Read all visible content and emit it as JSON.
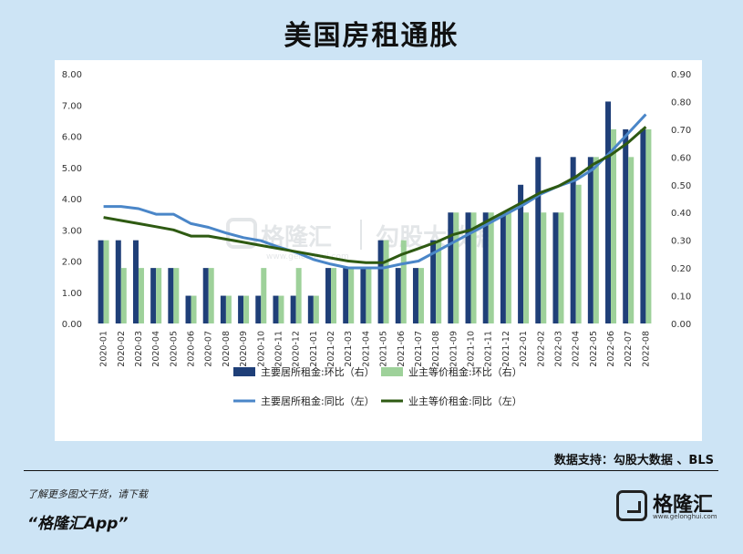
{
  "title": "美国房租通胀",
  "source_note": "数据支持：勾股大数据 、BLS",
  "footer": {
    "tagline": "了解更多图文干货，请下载",
    "app": "“格隆汇App”"
  },
  "logo": {
    "name": "格隆汇",
    "url": "www.gelonghui.com",
    "icon": "gelonghui-logo-icon"
  },
  "watermark": {
    "text_a": "格隆汇",
    "text_b": "勾股大数据",
    "url": "www.gelonghui.com"
  },
  "chart_data": {
    "type": "bar",
    "categories": [
      "2020-01",
      "2020-02",
      "2020-03",
      "2020-04",
      "2020-05",
      "2020-06",
      "2020-07",
      "2020-08",
      "2020-09",
      "2020-10",
      "2020-11",
      "2020-12",
      "2021-01",
      "2021-02",
      "2021-03",
      "2021-04",
      "2021-05",
      "2021-06",
      "2021-07",
      "2021-08",
      "2021-09",
      "2021-10",
      "2021-11",
      "2021-12",
      "2022-01",
      "2022-02",
      "2022-03",
      "2022-04",
      "2022-05",
      "2022-06",
      "2022-07",
      "2022-08"
    ],
    "left_axis": {
      "ylim": [
        0,
        8
      ],
      "ticks": [
        "0.00",
        "1.00",
        "2.00",
        "3.00",
        "4.00",
        "5.00",
        "6.00",
        "7.00",
        "8.00"
      ]
    },
    "right_axis": {
      "ylim": [
        0,
        0.9
      ],
      "ticks": [
        "0.00",
        "0.10",
        "0.20",
        "0.30",
        "0.40",
        "0.50",
        "0.60",
        "0.70",
        "0.80",
        "0.90"
      ]
    },
    "series": [
      {
        "name": "主要居所租金:环比（右）",
        "kind": "bar",
        "axis": "right",
        "color": "#1f3f78",
        "values": [
          0.3,
          0.3,
          0.3,
          0.2,
          0.2,
          0.1,
          0.2,
          0.1,
          0.1,
          0.1,
          0.1,
          0.1,
          0.1,
          0.2,
          0.2,
          0.2,
          0.3,
          0.2,
          0.2,
          0.3,
          0.4,
          0.4,
          0.4,
          0.4,
          0.5,
          0.6,
          0.4,
          0.6,
          0.6,
          0.8,
          0.7,
          0.7
        ]
      },
      {
        "name": "业主等价租金:环比（右）",
        "kind": "bar",
        "axis": "right",
        "color": "#9ed19a",
        "values": [
          0.3,
          0.2,
          0.2,
          0.2,
          0.2,
          0.1,
          0.2,
          0.1,
          0.1,
          0.2,
          0.1,
          0.2,
          0.1,
          0.2,
          0.2,
          0.2,
          0.3,
          0.3,
          0.2,
          0.3,
          0.4,
          0.4,
          0.4,
          0.4,
          0.4,
          0.4,
          0.4,
          0.5,
          0.6,
          0.7,
          0.6,
          0.7
        ]
      },
      {
        "name": "主要居所租金:同比（左）",
        "kind": "line",
        "axis": "left",
        "color": "#4a86c8",
        "values": [
          3.75,
          3.75,
          3.68,
          3.5,
          3.5,
          3.2,
          3.08,
          2.9,
          2.75,
          2.65,
          2.45,
          2.28,
          2.05,
          1.9,
          1.78,
          1.78,
          1.78,
          1.9,
          2.0,
          2.3,
          2.6,
          2.9,
          3.2,
          3.5,
          3.8,
          4.15,
          4.4,
          4.6,
          4.95,
          5.5,
          6.1,
          6.7
        ]
      },
      {
        "name": "业主等价租金:同比（左）",
        "kind": "line",
        "axis": "left",
        "color": "#2e5a12",
        "values": [
          3.4,
          3.3,
          3.2,
          3.1,
          3.0,
          2.8,
          2.8,
          2.7,
          2.6,
          2.5,
          2.4,
          2.3,
          2.2,
          2.1,
          2.0,
          1.95,
          1.95,
          2.2,
          2.4,
          2.6,
          2.85,
          3.0,
          3.3,
          3.6,
          3.9,
          4.2,
          4.4,
          4.7,
          5.1,
          5.4,
          5.8,
          6.3
        ]
      }
    ],
    "grid": false,
    "legend_placement": "bottom"
  }
}
